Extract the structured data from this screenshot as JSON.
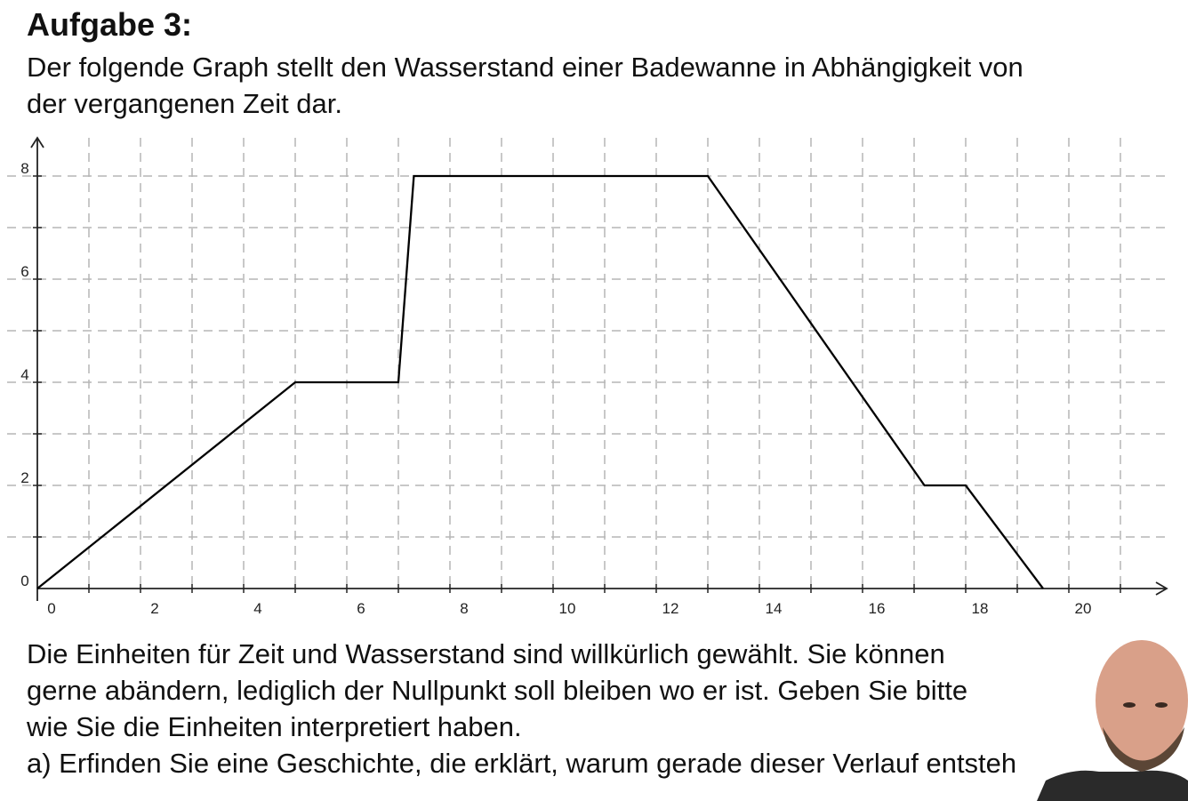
{
  "task": {
    "title": "Aufgabe 3:",
    "intro_line1": "Der folgende Graph stellt den Wasserstand einer Badewanne in Abhängigkeit von",
    "intro_line2": "der vergangenen Zeit dar.",
    "body_line1": "Die Einheiten für Zeit und Wasserstand sind willkürlich gewählt. Sie können",
    "body_line2": "gerne abändern, lediglich der Nullpunkt soll bleiben wo er ist. Geben Sie bitte",
    "body_line3": "wie Sie die Einheiten interpretiert haben.",
    "question_a": "a) Erfinden Sie eine Geschichte, die erklärt, warum gerade dieser Verlauf entsteh"
  },
  "colors": {
    "line": "#000000",
    "grid": "#b5b5b5",
    "axis": "#222222",
    "skin": "#d9a089",
    "beard": "#5b4636",
    "shirt": "#2a2a2a"
  },
  "webcam": {
    "icon": "presenter-webcam-icon"
  },
  "chart_data": {
    "type": "line",
    "title": "",
    "xlabel": "",
    "ylabel": "",
    "xlim": [
      0,
      22
    ],
    "ylim": [
      0,
      8.7
    ],
    "grid": true,
    "x_ticks": [
      "0",
      "2",
      "4",
      "6",
      "8",
      "10",
      "12",
      "14",
      "16",
      "18",
      "20"
    ],
    "y_ticks": [
      "0",
      "2",
      "4",
      "6",
      "8"
    ],
    "series": [
      {
        "x": [
          0,
          5,
          7,
          7.3,
          13,
          17.2,
          18,
          19.5
        ],
        "y": [
          0,
          4,
          4,
          8,
          8,
          2,
          2,
          0
        ]
      }
    ]
  }
}
